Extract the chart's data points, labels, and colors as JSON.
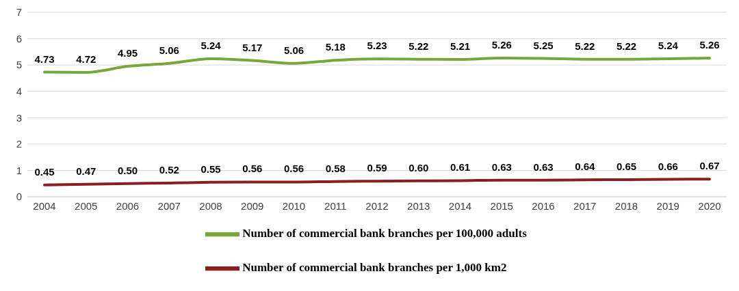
{
  "chart_data": {
    "type": "line",
    "categories": [
      "2004",
      "2005",
      "2006",
      "2007",
      "2008",
      "2009",
      "2010",
      "2011",
      "2012",
      "2013",
      "2014",
      "2015",
      "2016",
      "2017",
      "2018",
      "2019",
      "2020"
    ],
    "series": [
      {
        "name": "Number of commercial bank branches per 100,000 adults",
        "color": "#77a63a",
        "values": [
          4.73,
          4.72,
          4.95,
          5.06,
          5.24,
          5.17,
          5.06,
          5.18,
          5.23,
          5.22,
          5.21,
          5.26,
          5.25,
          5.22,
          5.22,
          5.24,
          5.26
        ],
        "value_labels": [
          "4.73",
          "4.72",
          "4.95",
          "5.06",
          "5.24",
          "5.17",
          "5.06",
          "5.18",
          "5.23",
          "5.22",
          "5.21",
          "5.26",
          "5.25",
          "5.22",
          "5.22",
          "5.24",
          "5.26"
        ]
      },
      {
        "name": "Number of commercial bank branches per 1,000 km2",
        "color": "#8b1e1e",
        "values": [
          0.45,
          0.47,
          0.5,
          0.52,
          0.55,
          0.56,
          0.56,
          0.58,
          0.59,
          0.6,
          0.61,
          0.63,
          0.63,
          0.64,
          0.65,
          0.66,
          0.67
        ],
        "value_labels": [
          "0.45",
          "0.47",
          "0.50",
          "0.52",
          "0.55",
          "0.56",
          "0.56",
          "0.58",
          "0.59",
          "0.60",
          "0.61",
          "0.63",
          "0.63",
          "0.64",
          "0.65",
          "0.66",
          "0.67"
        ]
      }
    ],
    "ylim": [
      0,
      7
    ],
    "yticks": [
      0,
      1,
      2,
      3,
      4,
      5,
      6,
      7
    ],
    "grid": "y",
    "legend": "bottom"
  }
}
